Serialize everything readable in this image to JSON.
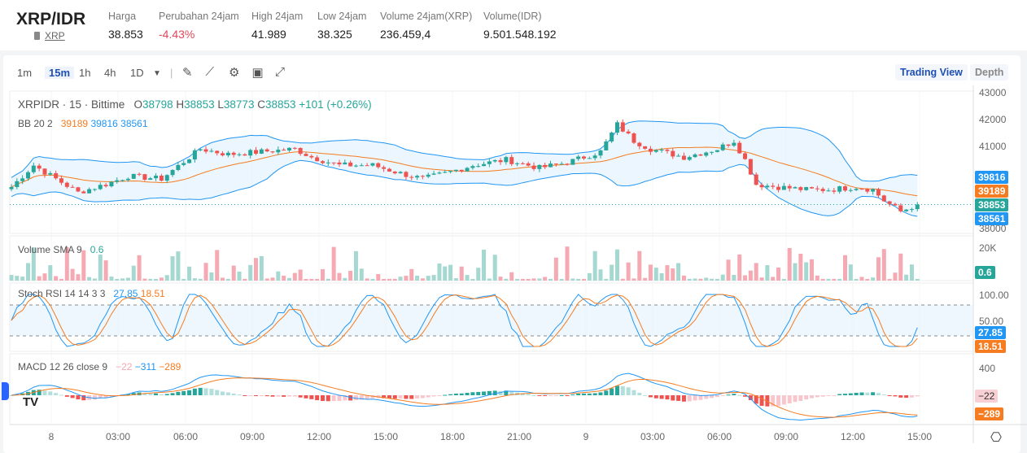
{
  "header": {
    "pair": "XRP/IDR",
    "asset_link": "XRP",
    "stats": [
      {
        "label": "Harga",
        "value": "38.853"
      },
      {
        "label": "Perubahan 24jam",
        "value": "-4.43%",
        "color": "#e0475a"
      },
      {
        "label": "High 24jam",
        "value": "41.989"
      },
      {
        "label": "Low 24jam",
        "value": "38.325"
      },
      {
        "label": "Volume 24jam(XRP)",
        "value": "236.459,4"
      },
      {
        "label": "Volume(IDR)",
        "value": "9.501.548.192"
      }
    ]
  },
  "toolbar": {
    "intervals": [
      "1m",
      "15m",
      "1h",
      "4h",
      "1D"
    ],
    "active": "15m",
    "icons": [
      "pencil-icon",
      "indicator-icon",
      "gear-icon",
      "save-icon",
      "fullscreen-icon"
    ],
    "views": [
      "Trading View",
      "Depth"
    ],
    "active_view": "Trading View"
  },
  "legend": {
    "symbol": "XRPIDR · 15 · Bittime",
    "o": "38798",
    "h": "38853",
    "l": "38773",
    "c": "38853",
    "change": "+101 (+0.26%)",
    "bb": {
      "label": "BB 20 2",
      "basis": "39189",
      "upper": "39816",
      "lower": "38561"
    },
    "volume": {
      "label": "Volume SMA 9",
      "value": "0.6"
    },
    "stoch": {
      "label": "Stoch RSI 14 14 3 3",
      "k": "27.85",
      "d": "18.51"
    },
    "macd": {
      "label": "MACD 12 26 close 9",
      "hist": "−22",
      "macd": "−311",
      "signal": "−289"
    }
  },
  "price_axis": [
    "43000",
    "42000",
    "41000",
    "38000"
  ],
  "volume_axis": [
    "20K"
  ],
  "stoch_axis": [
    "100.00",
    "50.00"
  ],
  "macd_axis": [
    "400"
  ],
  "tags": {
    "upper": "39816",
    "basis": "39189",
    "last": "38853",
    "lower": "38561",
    "vol": "0.6",
    "k": "27.85",
    "d": "18.51",
    "hist": "−22",
    "signal": "−289"
  },
  "time_axis": [
    "8",
    "03:00",
    "06:00",
    "09:00",
    "12:00",
    "15:00",
    "18:00",
    "21:00",
    "9",
    "03:00",
    "06:00",
    "09:00",
    "12:00",
    "15:00"
  ],
  "colors": {
    "up": "#26a69a",
    "down": "#ef5350",
    "bb": "#2196f3",
    "basis": "#f57c20",
    "accent": "#1e4fb4"
  },
  "chart_data": {
    "type": "candlestick",
    "interval": "15m",
    "price_anchors": [
      [
        0,
        39500
      ],
      [
        4,
        40300
      ],
      [
        8,
        39800
      ],
      [
        12,
        39300
      ],
      [
        17,
        39600
      ],
      [
        21,
        39900
      ],
      [
        27,
        39800
      ],
      [
        34,
        40900
      ],
      [
        39,
        40700
      ],
      [
        45,
        40800
      ],
      [
        51,
        40900
      ],
      [
        54,
        40600
      ],
      [
        59,
        40300
      ],
      [
        65,
        40300
      ],
      [
        70,
        40000
      ],
      [
        74,
        39800
      ],
      [
        78,
        40000
      ],
      [
        83,
        40300
      ],
      [
        89,
        40500
      ],
      [
        95,
        40200
      ],
      [
        100,
        40400
      ],
      [
        106,
        40800
      ],
      [
        109,
        41800
      ],
      [
        112,
        41200
      ],
      [
        115,
        40900
      ],
      [
        121,
        40600
      ],
      [
        127,
        40900
      ],
      [
        130,
        41200
      ],
      [
        132,
        40500
      ],
      [
        134,
        39600
      ],
      [
        138,
        39500
      ],
      [
        143,
        39400
      ],
      [
        147,
        39400
      ],
      [
        152,
        39500
      ],
      [
        155,
        39400
      ],
      [
        157,
        39000
      ],
      [
        160,
        38600
      ],
      [
        163,
        38853
      ]
    ]
  }
}
